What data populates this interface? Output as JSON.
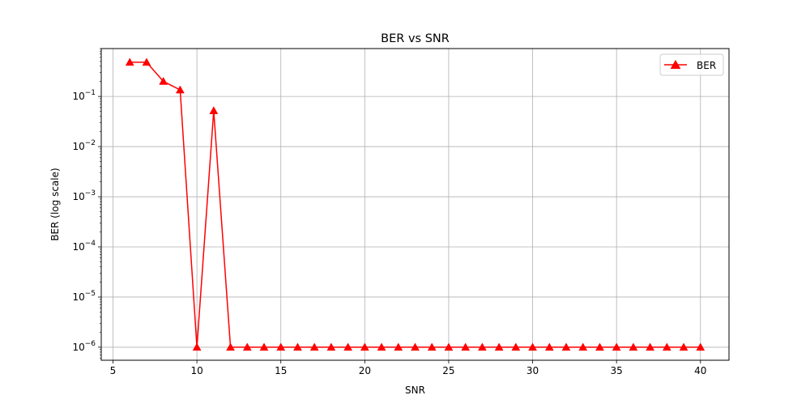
{
  "chart_data": {
    "type": "line",
    "title": "BER vs SNR",
    "xlabel": "SNR",
    "ylabel": "BER (log scale)",
    "yscale": "log",
    "xlim": [
      4.3,
      41.7
    ],
    "ylim": [
      5.5e-07,
      0.9
    ],
    "xticks": [
      {
        "value": 5,
        "label": "5"
      },
      {
        "value": 10,
        "label": "10"
      },
      {
        "value": 15,
        "label": "15"
      },
      {
        "value": 20,
        "label": "20"
      },
      {
        "value": 25,
        "label": "25"
      },
      {
        "value": 30,
        "label": "30"
      },
      {
        "value": 35,
        "label": "35"
      },
      {
        "value": 40,
        "label": "40"
      }
    ],
    "yticks": [
      {
        "value": 1e-06,
        "base": "10",
        "exp": "−6"
      },
      {
        "value": 1e-05,
        "base": "10",
        "exp": "−5"
      },
      {
        "value": 0.0001,
        "base": "10",
        "exp": "−4"
      },
      {
        "value": 0.001,
        "base": "10",
        "exp": "−3"
      },
      {
        "value": 0.01,
        "base": "10",
        "exp": "−2"
      },
      {
        "value": 0.1,
        "base": "10",
        "exp": "−1"
      }
    ],
    "grid": true,
    "legend_position": "top-right",
    "series": [
      {
        "name": "BER",
        "color": "#ff0000",
        "marker": "triangle-up",
        "x": [
          6,
          7,
          8,
          9,
          10,
          11,
          12,
          13,
          14,
          15,
          16,
          17,
          18,
          19,
          20,
          21,
          22,
          23,
          24,
          25,
          26,
          27,
          28,
          29,
          30,
          31,
          32,
          33,
          34,
          35,
          36,
          37,
          38,
          39,
          40
        ],
        "y": [
          0.48,
          0.48,
          0.2,
          0.135,
          1e-06,
          0.052,
          1e-06,
          1e-06,
          1e-06,
          1e-06,
          1e-06,
          1e-06,
          1e-06,
          1e-06,
          1e-06,
          1e-06,
          1e-06,
          1e-06,
          1e-06,
          1e-06,
          1e-06,
          1e-06,
          1e-06,
          1e-06,
          1e-06,
          1e-06,
          1e-06,
          1e-06,
          1e-06,
          1e-06,
          1e-06,
          1e-06,
          1e-06,
          1e-06,
          1e-06
        ]
      }
    ]
  }
}
